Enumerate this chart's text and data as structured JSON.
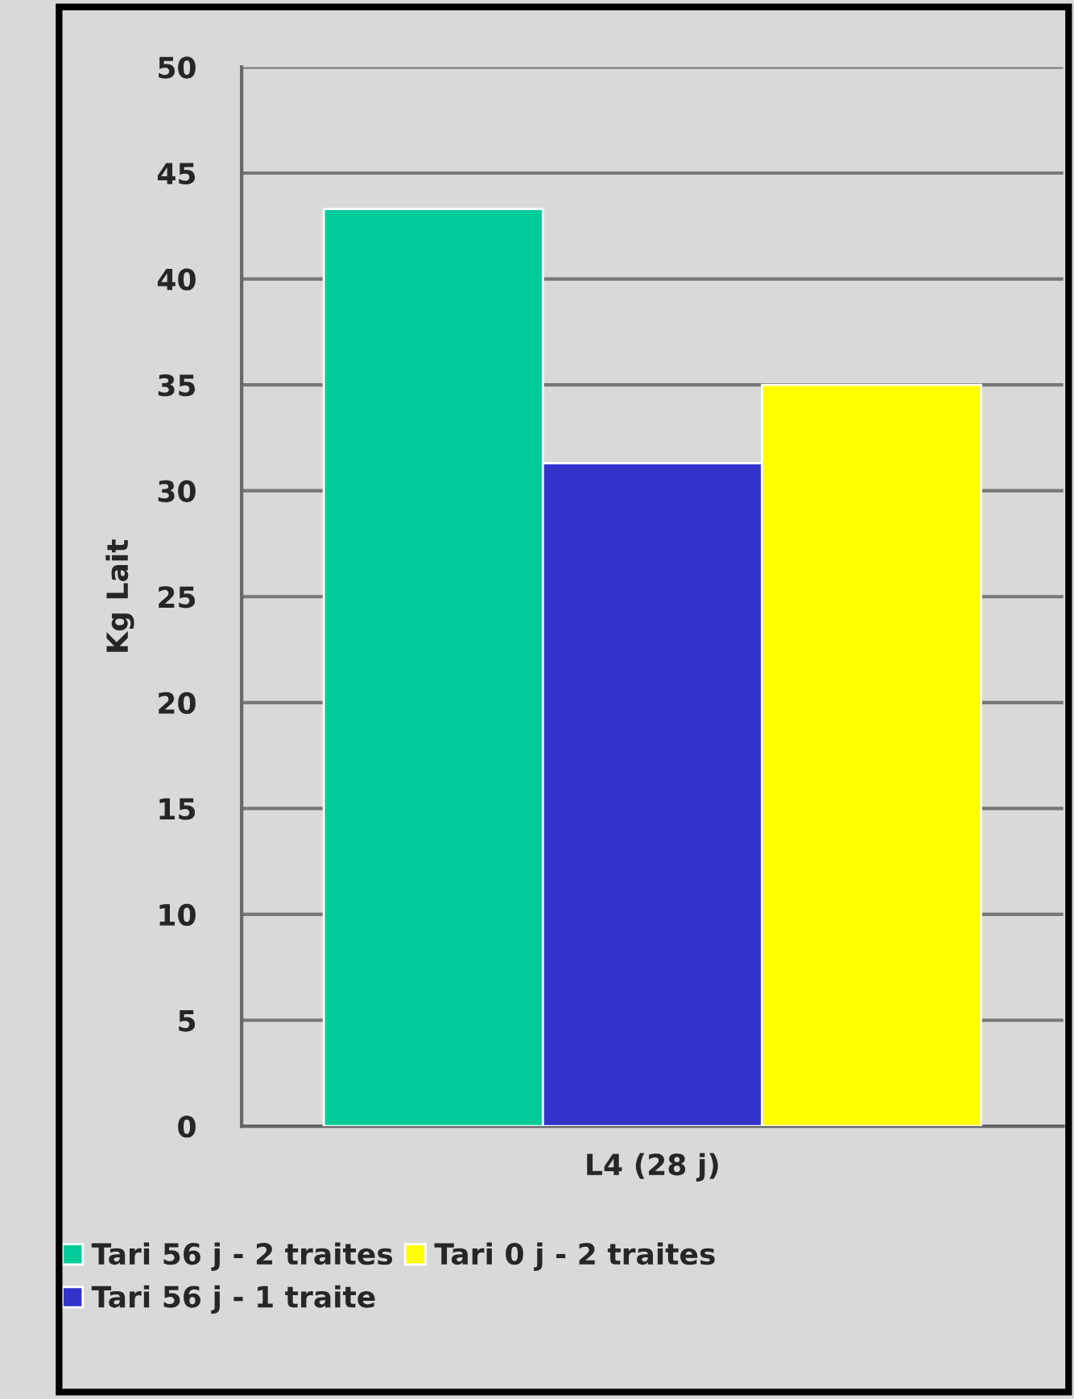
{
  "chart_data": {
    "type": "bar",
    "ylabel": "Kg Lait",
    "categories": [
      "L4 (28 j)"
    ],
    "series": [
      {
        "name": "Tari 56 j - 2 traites",
        "color": "#00cc99",
        "values": [
          43.3
        ]
      },
      {
        "name": "Tari 56 j - 1 traite",
        "color": "#3333cc",
        "values": [
          31.3
        ]
      },
      {
        "name": "Tari 0 j - 2 traites",
        "color": "#ffff00",
        "values": [
          35.0
        ]
      }
    ],
    "ylim": [
      0,
      50
    ],
    "yticks": [
      0,
      5,
      10,
      15,
      20,
      25,
      30,
      35,
      40,
      45,
      50
    ],
    "grid": "y",
    "legend": "bottom"
  }
}
